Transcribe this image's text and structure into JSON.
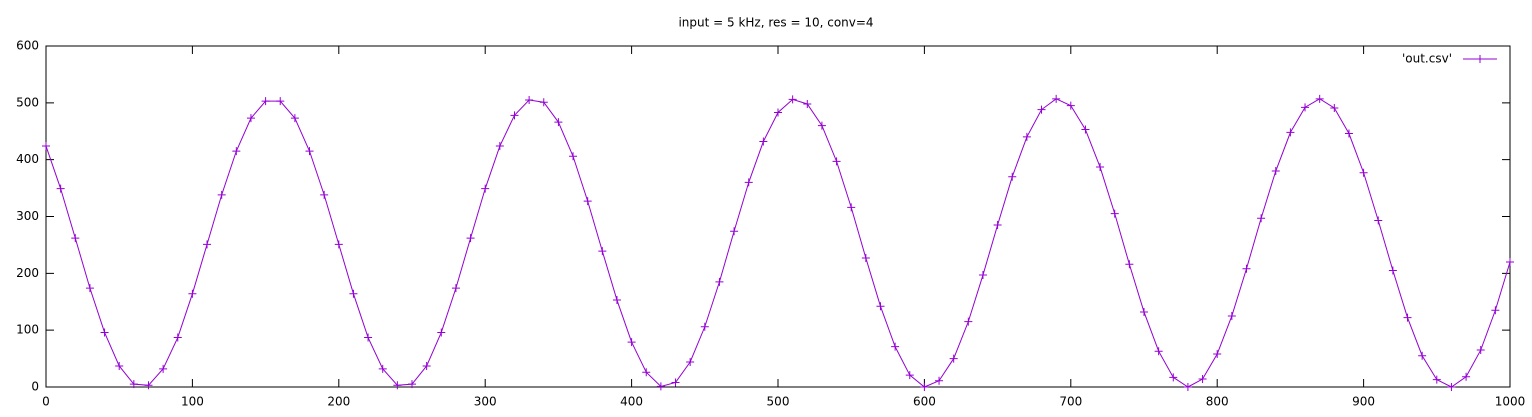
{
  "chart_data": {
    "type": "line",
    "title": "input = 5 kHz, res = 10, conv=4",
    "x": [
      0,
      10,
      20,
      30,
      40,
      50,
      60,
      70,
      80,
      90,
      100,
      110,
      120,
      130,
      140,
      150,
      160,
      170,
      180,
      190,
      200,
      210,
      220,
      230,
      240,
      250,
      260,
      270,
      280,
      290,
      300,
      310,
      320,
      330,
      340,
      350,
      360,
      370,
      380,
      390,
      400,
      410,
      420,
      430,
      440,
      450,
      460,
      470,
      480,
      490,
      500,
      510,
      520,
      530,
      540,
      550,
      560,
      570,
      580,
      590,
      600,
      610,
      620,
      630,
      640,
      650,
      660,
      670,
      680,
      690,
      700,
      710,
      720,
      730,
      740,
      750,
      760,
      770,
      780,
      790,
      800,
      810,
      820,
      830,
      840,
      850,
      860,
      870,
      880,
      890,
      900,
      910,
      920,
      930,
      940,
      950,
      960,
      970,
      980,
      990,
      1000
    ],
    "series": [
      {
        "name": "'out.csv'",
        "color": "#9400d3",
        "values": [
          424,
          349,
          262,
          174,
          96,
          37,
          5,
          3,
          32,
          87,
          164,
          251,
          338,
          415,
          473,
          503,
          503,
          473,
          415,
          338,
          251,
          164,
          87,
          32,
          3,
          5,
          37,
          96,
          174,
          262,
          349,
          424,
          478,
          505,
          501,
          466,
          406,
          327,
          239,
          153,
          79,
          26,
          1,
          8,
          44,
          106,
          185,
          274,
          360,
          432,
          483,
          506,
          498,
          460,
          397,
          316,
          227,
          142,
          71,
          21,
          0,
          11,
          50,
          115,
          197,
          285,
          370,
          440,
          488,
          507,
          495,
          453,
          387,
          305,
          216,
          132,
          63,
          17,
          0,
          14,
          58,
          125,
          208,
          297,
          380,
          448,
          492,
          507,
          491,
          446,
          377,
          293,
          205,
          122,
          55,
          13,
          0,
          18,
          65,
          135,
          220
        ]
      }
    ],
    "xlim": [
      0,
      1000
    ],
    "xticks": [
      0,
      100,
      200,
      300,
      400,
      500,
      600,
      700,
      800,
      900,
      1000
    ],
    "ylim": [
      0,
      600
    ],
    "yticks": [
      0,
      100,
      200,
      300,
      400,
      500,
      600
    ],
    "legend": "top-right",
    "marker": "plus"
  }
}
